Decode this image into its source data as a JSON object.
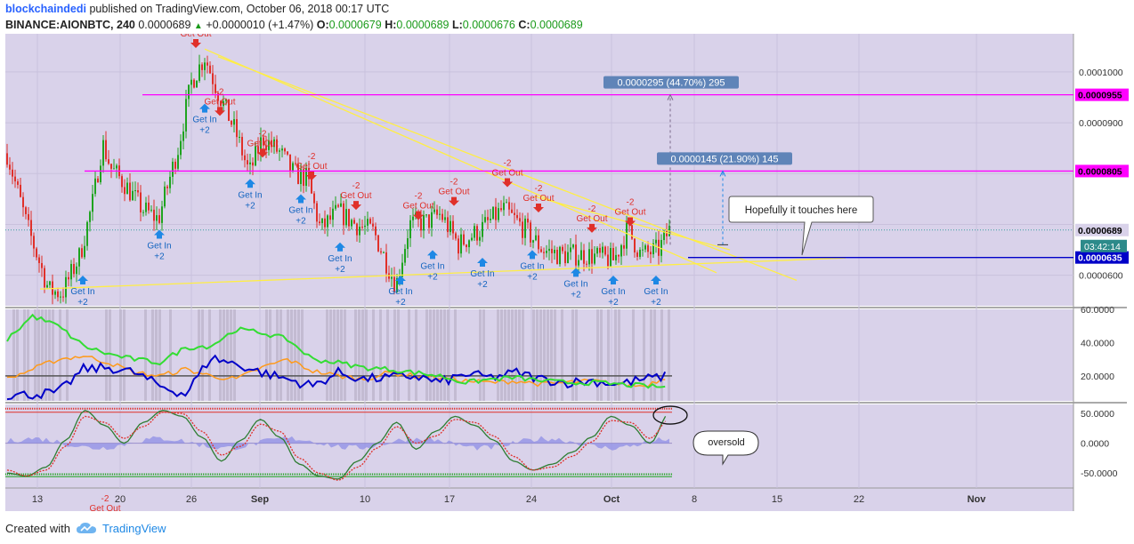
{
  "header": {
    "username": "blockchaindedi",
    "published_text": "published on TradingView.com, October 06, 2018 00:17 UTC",
    "symbol": "BINANCE:AIONBTC, 240",
    "last": "0.0000689",
    "change": "+0.0000010 (+1.47%)",
    "o_label": "O:",
    "o_value": "0.0000679",
    "h_label": "H:",
    "h_value": "0.0000689",
    "l_label": "L:",
    "l_value": "0.0000676",
    "c_label": "C:",
    "c_value": "0.0000689"
  },
  "footer": {
    "created_with": "Created with",
    "brand": "TradingView"
  },
  "colors": {
    "plot_bg": "#d9d2ea",
    "up": "#1fa31f",
    "down": "#e0302a",
    "magenta": "#ff00ff",
    "navy": "#0000c8",
    "trend": "#ffee44",
    "blue_signal": "#1e88e5"
  },
  "chart_data": [
    {
      "type": "candlestick",
      "title": "",
      "price_range": [
        5.4e-05,
        0.0001075
      ],
      "y_ticks": [
        "0.0001000",
        "0.0000900",
        "0.0000600"
      ],
      "price_tags": [
        "0.0000955",
        "0.0000805",
        "0.0000689",
        "0.0000635"
      ],
      "countdown": "03:42:14",
      "x_ticks": [
        "13",
        "20",
        "26",
        "Sep",
        "10",
        "17",
        "24",
        "Oct",
        "8",
        "15",
        "22",
        "Nov"
      ],
      "horizontal_levels": [
        {
          "price": 9.55e-05,
          "color": "#ff00ff"
        },
        {
          "price": 8.05e-05,
          "color": "#ff00ff"
        },
        {
          "price": 6.35e-05,
          "color": "#0000c8"
        }
      ],
      "measures": [
        {
          "label": "0.0000295 (44.70%) 295",
          "from": 6.6e-05,
          "to": 9.55e-05
        },
        {
          "label": "0.0000145 (21.90%) 145",
          "from": 6.6e-05,
          "to": 8.05e-05
        }
      ],
      "annotation": "Hopefully it touches here",
      "signal_labels": {
        "sell_count": "-2",
        "sell_text": "Get Out",
        "buy_count": "+2",
        "buy_text": "Get In"
      },
      "sell_signals": [
        1.1e-05,
        9.47e-05,
        9.1e-05,
        8.28e-05,
        7.83e-05,
        7.25e-05,
        7.05e-05,
        7.33e-05,
        7.7e-05,
        7.2e-05,
        6.8e-05,
        6.93e-05
      ],
      "buy_signals": [
        5.7e-05,
        7e-05,
        9.48e-05,
        8e-05,
        7.7e-05,
        6.75e-05,
        5.7e-05,
        6.6e-05,
        6.45e-05,
        6.6e-05,
        6.25e-05,
        6.05e-05,
        6.05e-05
      ]
    },
    {
      "type": "line",
      "title": "",
      "y_range": [
        5,
        60
      ],
      "y_ticks": [
        "60.0000",
        "40.0000",
        "20.0000"
      ],
      "reference_level": 20,
      "series": [
        {
          "values": [
            18,
            24,
            30,
            32,
            28,
            22,
            20,
            24,
            20,
            18,
            25,
            30,
            23,
            20,
            18,
            22,
            20,
            19,
            17,
            16,
            17,
            15,
            16,
            17,
            15,
            14,
            20
          ]
        },
        {
          "values": [
            8,
            9,
            10,
            24,
            25,
            22,
            14,
            9,
            31,
            27,
            22,
            18,
            14,
            22,
            18,
            19,
            20,
            16,
            21,
            19,
            22,
            18,
            16,
            17,
            15,
            18,
            20
          ]
        },
        {
          "values": [
            42,
            56,
            50,
            38,
            33,
            30,
            28,
            37,
            38,
            48,
            46,
            42,
            30,
            28,
            25,
            24,
            22,
            20,
            16,
            18,
            19,
            17,
            16,
            16,
            15,
            14,
            13
          ]
        }
      ]
    },
    {
      "type": "line",
      "title": "",
      "y_range": [
        -75,
        65
      ],
      "y_ticks": [
        "50.0000",
        "0.0000",
        "-50.0000"
      ],
      "annotation": "oversold",
      "series": [
        {
          "values": [
            -50,
            -55,
            -40,
            5,
            55,
            30,
            0,
            35,
            55,
            45,
            10,
            -30,
            5,
            40,
            10,
            -35,
            -55,
            -60,
            -30,
            0,
            35,
            -10,
            20,
            45,
            30,
            5,
            -30,
            -45,
            -35,
            -15,
            10,
            45,
            30,
            0,
            50
          ]
        },
        {
          "values": [
            -45,
            -55,
            -45,
            -5,
            45,
            35,
            8,
            28,
            52,
            50,
            20,
            -20,
            -5,
            32,
            20,
            -25,
            -50,
            -62,
            -40,
            -8,
            28,
            0,
            12,
            40,
            35,
            12,
            -22,
            -45,
            -40,
            -22,
            2,
            38,
            35,
            8,
            40
          ]
        }
      ]
    }
  ]
}
